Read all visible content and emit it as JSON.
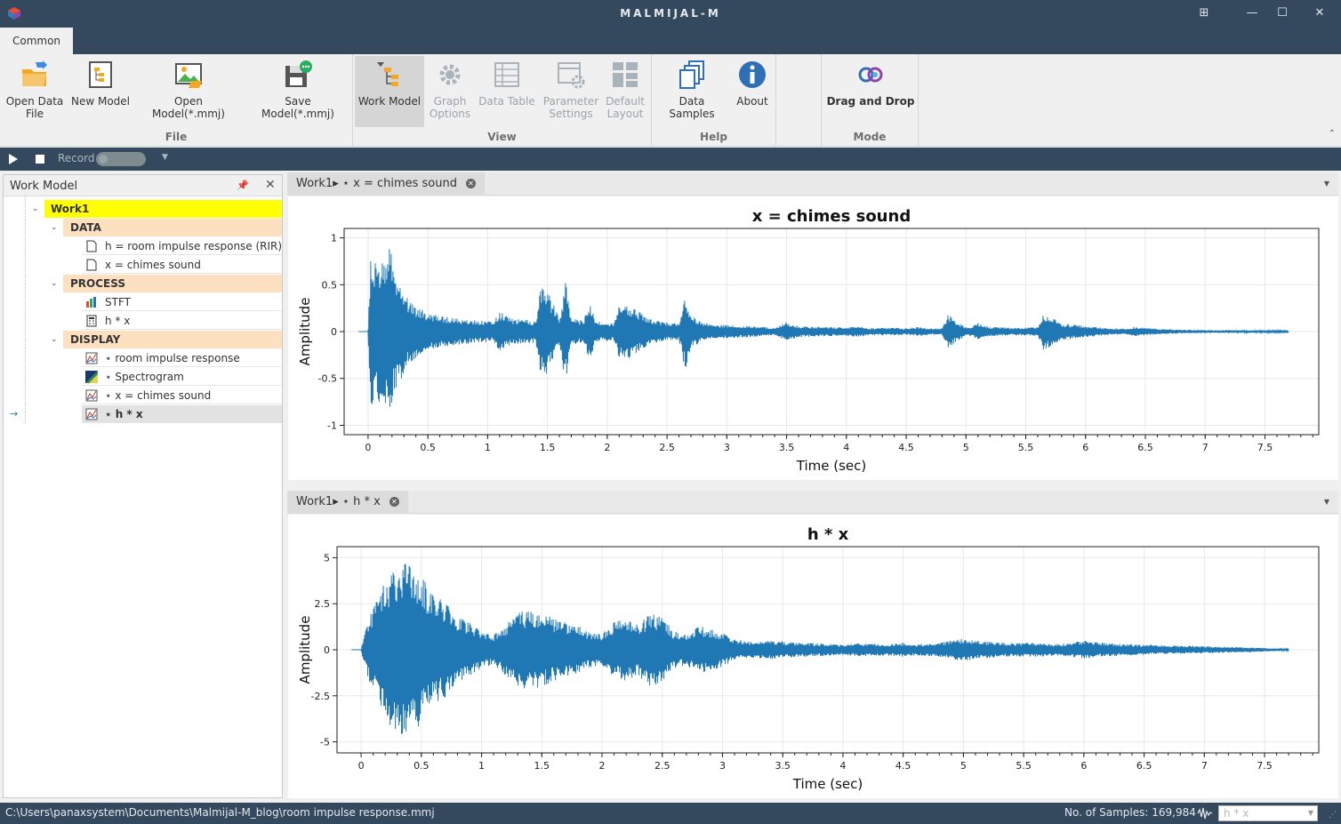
{
  "app": {
    "title": "MALMIJAL-M"
  },
  "tabs": {
    "common": "Common"
  },
  "ribbon": {
    "file": {
      "label": "File",
      "open_data_file_1": "Open Data",
      "open_data_file_2": "File",
      "new_model": "New Model",
      "open_model": "Open Model(*.mmj)",
      "save_model": "Save Model(*.mmj)"
    },
    "view": {
      "label": "View",
      "work_model": "Work Model",
      "graph_options_1": "Graph",
      "graph_options_2": "Options",
      "data_table": "Data Table",
      "parameter_settings_1": "Parameter",
      "parameter_settings_2": "Settings",
      "default_layout_1": "Default",
      "default_layout_2": "Layout"
    },
    "help": {
      "label": "Help",
      "data_samples": "Data Samples",
      "about": "About"
    },
    "mode": {
      "label": "Mode",
      "drag_and_drop": "Drag and Drop"
    }
  },
  "record": {
    "label": "Record"
  },
  "work_model": {
    "title": "Work Model",
    "root": "Work1",
    "data_header": "DATA",
    "data_items": [
      "h = room impulse response (RIR)",
      "x = chimes sound"
    ],
    "process_header": "PROCESS",
    "process_items": [
      "STFT",
      "h * x"
    ],
    "display_header": "DISPLAY",
    "display_items": [
      "⋆ room impulse response",
      "⋆ Spectrogram",
      "⋆ x = chimes sound",
      "⋆ h * x"
    ]
  },
  "panes": [
    {
      "tab": "Work1▸ ⋆ x = chimes sound"
    },
    {
      "tab": "Work1▸ ⋆ h * x"
    }
  ],
  "chart_data": [
    {
      "type": "line",
      "title": "x = chimes sound",
      "xlabel": "Time (sec)",
      "ylabel": "Amplitude",
      "xlim": [
        -0.2,
        7.95
      ],
      "ylim": [
        -1.1,
        1.1
      ],
      "xticks": [
        0,
        0.5,
        1,
        1.5,
        2,
        2.5,
        3,
        3.5,
        4,
        4.5,
        5,
        5.5,
        6,
        6.5,
        7,
        7.5
      ],
      "yticks": [
        1,
        0.5,
        0,
        -0.5,
        -1
      ],
      "grid": true,
      "color": "#1f77b4",
      "duration_sec": 7.7,
      "envelope": {
        "x": [
          0,
          0.02,
          0.05,
          0.12,
          0.18,
          0.22,
          0.28,
          0.34,
          0.4,
          0.5,
          0.6,
          0.7,
          0.8,
          0.9,
          0.95,
          1.0,
          1.05,
          1.1,
          1.2,
          1.3,
          1.4,
          1.45,
          1.5,
          1.6,
          1.65,
          1.7,
          1.8,
          1.85,
          1.9,
          2.0,
          2.05,
          2.1,
          2.2,
          2.3,
          2.4,
          2.5,
          2.6,
          2.65,
          2.7,
          2.8,
          2.9,
          3.0,
          3.2,
          3.4,
          3.5,
          3.6,
          3.8,
          4.0,
          4.1,
          4.2,
          4.4,
          4.5,
          4.6,
          4.7,
          4.8,
          4.85,
          4.9,
          5.0,
          5.05,
          5.1,
          5.2,
          5.4,
          5.6,
          5.65,
          5.7,
          5.8,
          6.0,
          6.2,
          6.35,
          6.4,
          6.5,
          6.6,
          6.7,
          6.8,
          7.0,
          7.2,
          7.4,
          7.6,
          7.7
        ],
        "y": [
          0.02,
          0.85,
          0.7,
          0.92,
          0.95,
          0.65,
          0.55,
          0.35,
          0.28,
          0.2,
          0.17,
          0.15,
          0.14,
          0.12,
          0.12,
          0.11,
          0.11,
          0.22,
          0.14,
          0.13,
          0.12,
          0.5,
          0.45,
          0.15,
          0.55,
          0.14,
          0.12,
          0.32,
          0.12,
          0.1,
          0.09,
          0.3,
          0.28,
          0.18,
          0.12,
          0.1,
          0.09,
          0.42,
          0.18,
          0.1,
          0.07,
          0.07,
          0.06,
          0.04,
          0.1,
          0.06,
          0.05,
          0.045,
          0.06,
          0.04,
          0.04,
          0.035,
          0.05,
          0.035,
          0.035,
          0.2,
          0.12,
          0.05,
          0.05,
          0.09,
          0.05,
          0.04,
          0.045,
          0.2,
          0.16,
          0.09,
          0.06,
          0.035,
          0.03,
          0.05,
          0.04,
          0.03,
          0.025,
          0.02,
          0.015,
          0.015,
          0.012,
          0.01,
          0.008
        ]
      }
    },
    {
      "type": "line",
      "title": "h * x",
      "xlabel": "Time (sec)",
      "ylabel": "Amplitude",
      "xlim": [
        -0.2,
        7.95
      ],
      "ylim": [
        -5.6,
        5.6
      ],
      "xticks": [
        0,
        0.5,
        1,
        1.5,
        2,
        2.5,
        3,
        3.5,
        4,
        4.5,
        5,
        5.5,
        6,
        6.5,
        7,
        7.5
      ],
      "yticks": [
        5,
        2.5,
        0,
        -2.5,
        -5
      ],
      "grid": true,
      "color": "#1f77b4",
      "duration_sec": 7.7,
      "envelope": {
        "x": [
          0,
          0.05,
          0.1,
          0.2,
          0.3,
          0.35,
          0.4,
          0.5,
          0.6,
          0.7,
          0.8,
          0.9,
          1.0,
          1.1,
          1.2,
          1.3,
          1.4,
          1.5,
          1.6,
          1.7,
          1.8,
          1.9,
          2.0,
          2.1,
          2.2,
          2.3,
          2.4,
          2.5,
          2.6,
          2.7,
          2.8,
          2.9,
          3.0,
          3.1,
          3.2,
          3.4,
          3.6,
          3.8,
          4.0,
          4.2,
          4.4,
          4.5,
          4.6,
          4.8,
          5.0,
          5.2,
          5.4,
          5.6,
          5.8,
          6.0,
          6.2,
          6.4,
          6.6,
          6.8,
          7.0,
          7.2,
          7.4,
          7.6,
          7.7
        ],
        "y": [
          0.05,
          1.5,
          2.2,
          3.8,
          4.6,
          5.0,
          4.7,
          4.0,
          3.0,
          2.6,
          1.8,
          1.5,
          1.0,
          0.8,
          1.4,
          2.0,
          2.2,
          2.0,
          1.7,
          1.5,
          1.3,
          1.0,
          0.9,
          1.5,
          1.7,
          1.4,
          2.0,
          1.8,
          1.0,
          0.9,
          1.3,
          1.2,
          0.9,
          0.6,
          0.45,
          0.5,
          0.4,
          0.35,
          0.3,
          0.35,
          0.32,
          0.38,
          0.3,
          0.4,
          0.6,
          0.45,
          0.35,
          0.4,
          0.3,
          0.5,
          0.35,
          0.3,
          0.25,
          0.22,
          0.2,
          0.16,
          0.12,
          0.08,
          0.05
        ]
      }
    }
  ],
  "status": {
    "path": "C:\\Users\\panaxsystem\\Documents\\Malmijal-M_blog\\room impulse response.mmj",
    "samples": "No. of Samples: 169,984",
    "select_value": "h * x"
  },
  "colors": {
    "titlebar": "#34495e",
    "root_highlight": "#ffff00",
    "category_highlight": "#fde0c0",
    "signal": "#1f77b4"
  }
}
